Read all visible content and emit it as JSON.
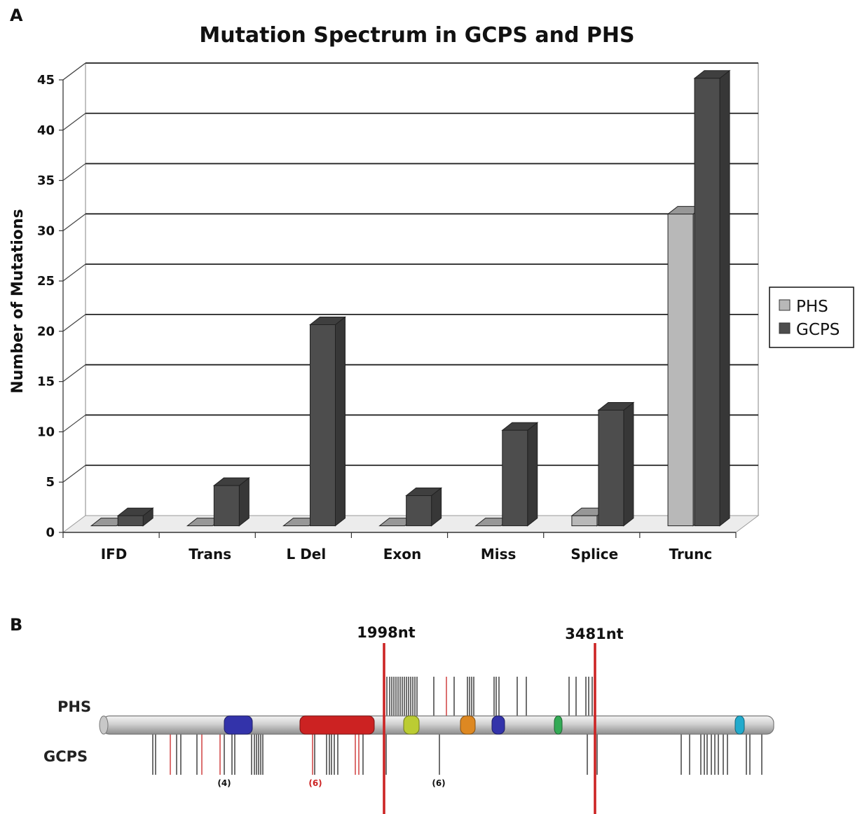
{
  "panel_a_label": "A",
  "panel_b_label": "B",
  "chart_data": {
    "type": "bar",
    "title": "Mutation Spectrum in GCPS and PHS",
    "ylabel": "Number of Mutations",
    "xlabel": "",
    "ylim": [
      0,
      45
    ],
    "yticks": [
      0,
      5,
      10,
      15,
      20,
      25,
      30,
      35,
      40,
      45
    ],
    "grid": true,
    "legend_position": "right",
    "categories": [
      "IFD",
      "Trans",
      "L Del",
      "Exon",
      "Miss",
      "Splice",
      "Trunc"
    ],
    "series": [
      {
        "name": "PHS",
        "values": [
          0,
          0,
          0,
          0,
          0,
          1,
          31
        ],
        "color": "#b8b8b8"
      },
      {
        "name": "GCPS",
        "values": [
          1,
          4,
          20,
          3,
          9.5,
          11.5,
          44.5
        ],
        "color": "#4d4d4d"
      }
    ]
  },
  "gene_map": {
    "track_labels": {
      "phs": "PHS",
      "gcps": "GCPS"
    },
    "markers": [
      {
        "label": "1998nt",
        "color": "#cc2222"
      },
      {
        "label": "3481nt",
        "color": "#cc2222"
      }
    ],
    "counts": [
      {
        "text": "(4)",
        "color": "#111111"
      },
      {
        "text": "(6)",
        "color": "#cc2222"
      },
      {
        "text": "(6)",
        "color": "#111111"
      }
    ],
    "domain_colors": [
      "#3333aa",
      "#cc2222",
      "#bbcc33",
      "#dd8822",
      "#3333aa",
      "#33aa55",
      "#22aacc"
    ]
  }
}
